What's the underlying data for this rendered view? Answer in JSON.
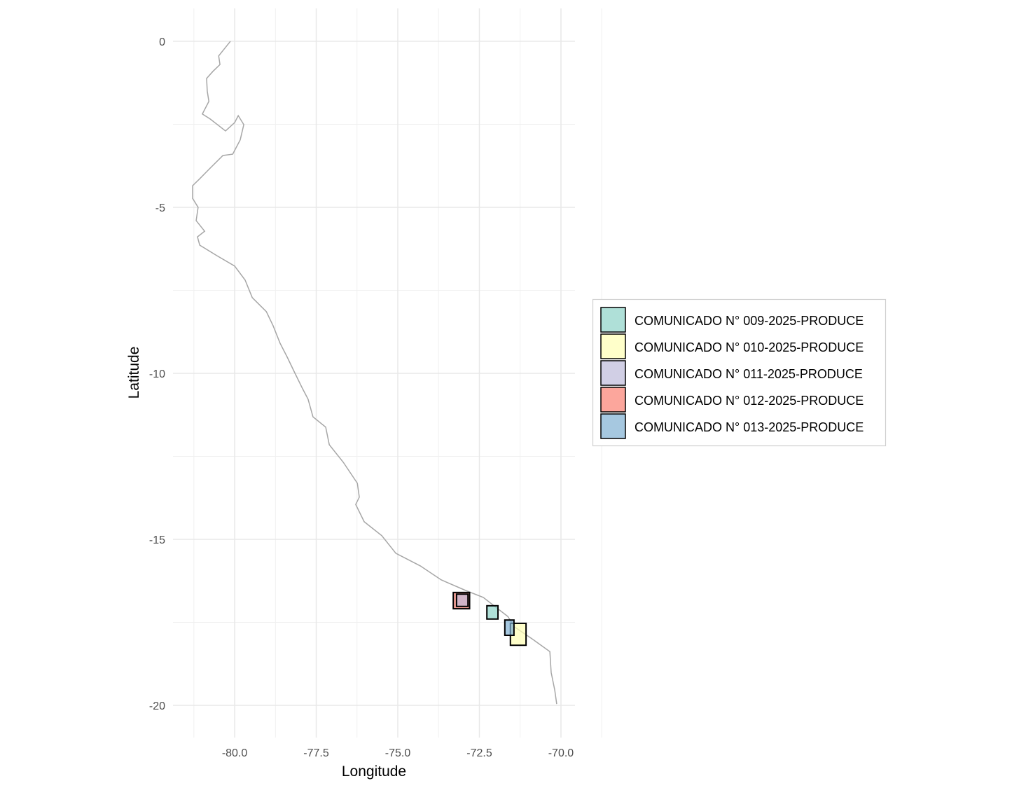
{
  "chart_data": {
    "type": "map",
    "xlabel": "Longitude",
    "ylabel": "Latitude",
    "xlim": [
      -81.89,
      -69.57
    ],
    "ylim": [
      -20.97,
      0.99
    ],
    "x_ticks": [
      -80.0,
      -77.5,
      -75.0,
      -72.5,
      -70.0
    ],
    "x_tick_labels": [
      "-80.0",
      "-77.5",
      "-75.0",
      "-72.5",
      "-70.0"
    ],
    "y_ticks": [
      0,
      -5,
      -10,
      -15,
      -20
    ],
    "y_tick_labels": [
      "0",
      "-5",
      "-10",
      "-15",
      "-20"
    ],
    "grid": true,
    "legend_position": "right",
    "coastline_color": "#a6a6a6",
    "coastline": [
      [
        -80.13,
        0
      ],
      [
        -80.49,
        -0.44
      ],
      [
        -80.45,
        -0.7
      ],
      [
        -80.67,
        -0.91
      ],
      [
        -80.86,
        -1.12
      ],
      [
        -80.84,
        -1.5
      ],
      [
        -80.79,
        -1.81
      ],
      [
        -80.99,
        -2.19
      ],
      [
        -80.75,
        -2.34
      ],
      [
        -80.28,
        -2.7
      ],
      [
        -80.0,
        -2.45
      ],
      [
        -79.89,
        -2.24
      ],
      [
        -79.72,
        -2.51
      ],
      [
        -79.83,
        -2.97
      ],
      [
        -80.06,
        -3.4
      ],
      [
        -80.36,
        -3.44
      ],
      [
        -80.75,
        -3.82
      ],
      [
        -81.07,
        -4.14
      ],
      [
        -81.29,
        -4.35
      ],
      [
        -81.29,
        -4.73
      ],
      [
        -81.12,
        -5.0
      ],
      [
        -81.18,
        -5.4
      ],
      [
        -80.92,
        -5.72
      ],
      [
        -81.14,
        -5.89
      ],
      [
        -81.07,
        -6.14
      ],
      [
        -80.54,
        -6.46
      ],
      [
        -80.0,
        -6.77
      ],
      [
        -79.68,
        -7.19
      ],
      [
        -79.46,
        -7.72
      ],
      [
        -79.03,
        -8.14
      ],
      [
        -78.82,
        -8.57
      ],
      [
        -78.61,
        -9.09
      ],
      [
        -78.39,
        -9.51
      ],
      [
        -78.18,
        -9.94
      ],
      [
        -77.92,
        -10.46
      ],
      [
        -77.75,
        -10.78
      ],
      [
        -77.6,
        -11.31
      ],
      [
        -77.21,
        -11.62
      ],
      [
        -77.1,
        -12.15
      ],
      [
        -76.67,
        -12.68
      ],
      [
        -76.24,
        -13.31
      ],
      [
        -76.18,
        -13.73
      ],
      [
        -76.29,
        -13.95
      ],
      [
        -76.03,
        -14.47
      ],
      [
        -75.49,
        -14.89
      ],
      [
        -75.06,
        -15.42
      ],
      [
        -74.31,
        -15.8
      ],
      [
        -73.67,
        -16.22
      ],
      [
        -72.92,
        -16.54
      ],
      [
        -72.38,
        -16.75
      ],
      [
        -71.91,
        -17.11
      ],
      [
        -71.63,
        -17.32
      ],
      [
        -71.42,
        -17.64
      ],
      [
        -70.88,
        -18.0
      ],
      [
        -70.34,
        -18.38
      ],
      [
        -70.3,
        -19.01
      ],
      [
        -70.19,
        -19.54
      ],
      [
        -70.13,
        -19.96
      ]
    ],
    "series": [
      {
        "name": "COMUNICADO N° 009-2025-PRODUCE",
        "color": "#8DD3C7",
        "lon": [
          -72.27,
          -71.93
        ],
        "lat": [
          -17.4,
          -17.0
        ]
      },
      {
        "name": "COMUNICADO N° 010-2025-PRODUCE",
        "color": "#FFFFB3",
        "lon": [
          -71.55,
          -71.07
        ],
        "lat": [
          -18.19,
          -17.53
        ]
      },
      {
        "name": "COMUNICADO N° 011-2025-PRODUCE",
        "color": "#BEBADA",
        "lon": [
          -73.2,
          -72.85
        ],
        "lat": [
          -17.02,
          -16.65
        ]
      },
      {
        "name": "COMUNICADO N° 012-2025-PRODUCE",
        "color": "#FB8072",
        "lon": [
          -73.3,
          -72.8
        ],
        "lat": [
          -17.09,
          -16.6
        ]
      },
      {
        "name": "COMUNICADO N° 013-2025-PRODUCE",
        "color": "#80B1D3",
        "lon": [
          -71.72,
          -71.44
        ],
        "lat": [
          -17.89,
          -17.43
        ]
      }
    ]
  }
}
